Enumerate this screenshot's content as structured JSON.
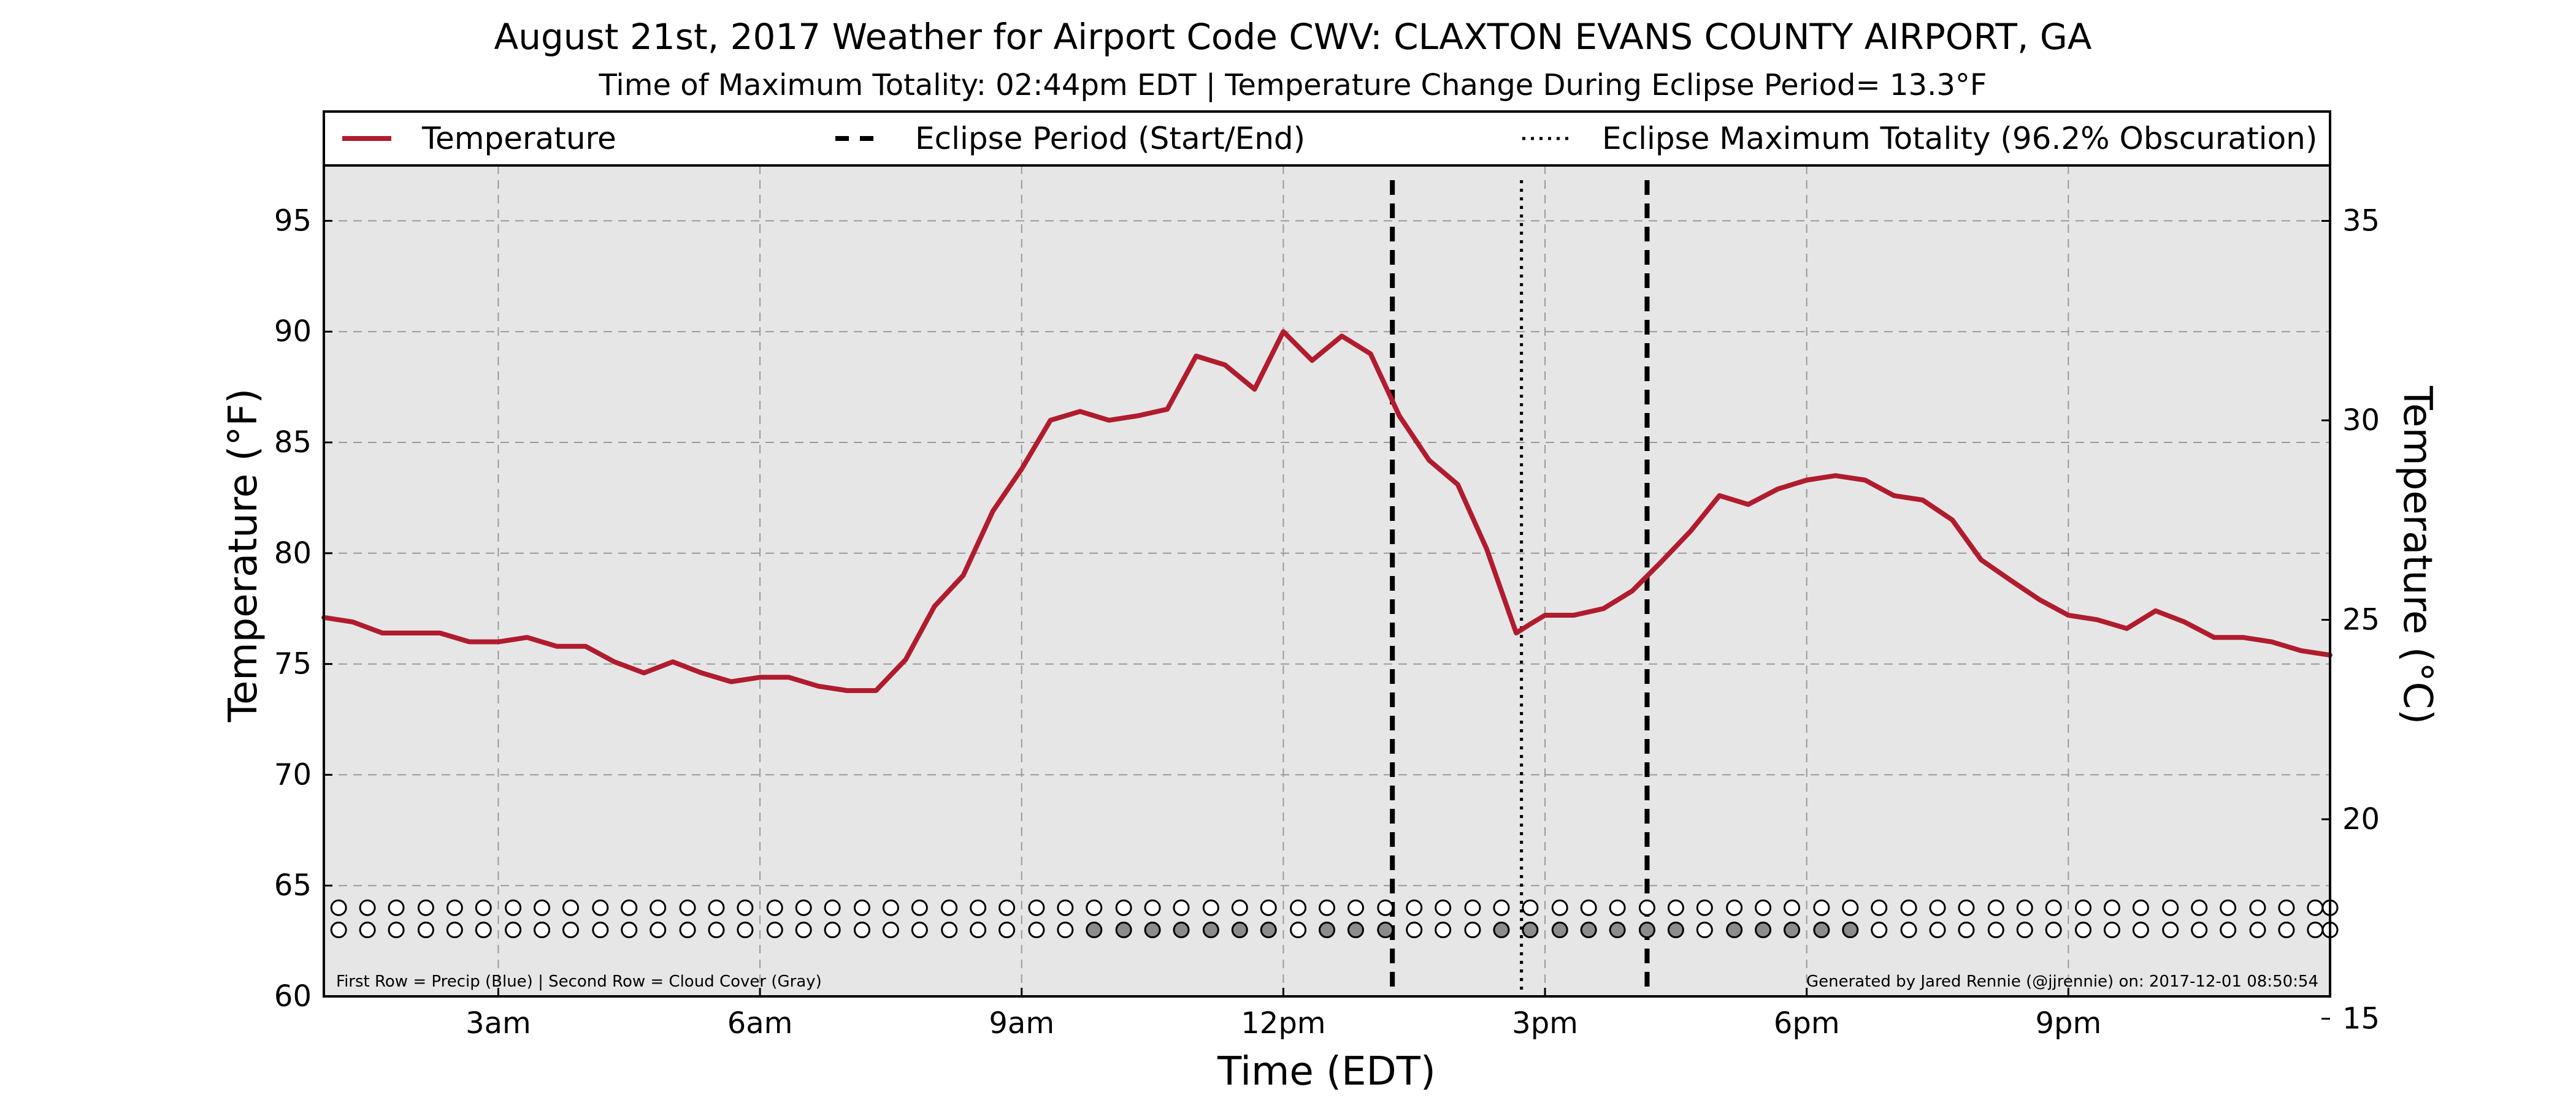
{
  "chart_data": {
    "type": "line",
    "title": "August 21st, 2017 Weather for Airport Code CWV: CLAXTON EVANS COUNTY AIRPORT, GA",
    "subtitle": "Time of Maximum Totality: 02:44pm EDT | Temperature Change During Eclipse Period= 13.3°F",
    "xlabel": "Time (EDT)",
    "ylabel": "Temperature (°F)",
    "ylabel_right": "Temperature (°C)",
    "ylim": [
      60,
      97.5
    ],
    "ylim_right": [
      15.56,
      36.39
    ],
    "y_ticks": [
      60,
      65,
      70,
      75,
      80,
      85,
      90,
      95
    ],
    "y_ticks_right": [
      15,
      20,
      25,
      30,
      35
    ],
    "xlim_hours": [
      1.0,
      24.0
    ],
    "x_ticks": [
      {
        "hour": 3,
        "label": "3am"
      },
      {
        "hour": 6,
        "label": "6am"
      },
      {
        "hour": 9,
        "label": "9am"
      },
      {
        "hour": 12,
        "label": "12pm"
      },
      {
        "hour": 15,
        "label": "3pm"
      },
      {
        "hour": 18,
        "label": "6pm"
      },
      {
        "hour": 21,
        "label": "9pm"
      }
    ],
    "grid": true,
    "legend_position": "top",
    "legend": [
      {
        "label": "Temperature",
        "style": "solid",
        "color": "#b01c2e"
      },
      {
        "label": "Eclipse Period (Start/End)",
        "style": "dashed",
        "color": "#000000"
      },
      {
        "label": "Eclipse Maximum Totality (96.2% Obscuration)",
        "style": "dotted",
        "color": "#000000"
      }
    ],
    "series": [
      {
        "name": "Temperature",
        "color": "#b01c2e",
        "x_hours": [
          1.0,
          1.33,
          1.67,
          2.0,
          2.33,
          2.67,
          3.0,
          3.33,
          3.67,
          4.0,
          4.33,
          4.67,
          5.0,
          5.33,
          5.67,
          6.0,
          6.33,
          6.67,
          7.0,
          7.33,
          7.67,
          8.0,
          8.33,
          8.67,
          9.0,
          9.33,
          9.67,
          10.0,
          10.33,
          10.67,
          11.0,
          11.33,
          11.67,
          12.0,
          12.33,
          12.67,
          13.0,
          13.33,
          13.67,
          14.0,
          14.33,
          14.67,
          14.83,
          15.0,
          15.33,
          15.67,
          16.0,
          16.33,
          16.67,
          17.0,
          17.33,
          17.67,
          18.0,
          18.33,
          18.67,
          19.0,
          19.33,
          19.67,
          20.0,
          20.33,
          20.67,
          21.0,
          21.33,
          21.67,
          22.0,
          22.33,
          22.67,
          23.0,
          23.33,
          23.67,
          24.0
        ],
        "values": [
          77.1,
          76.9,
          76.4,
          76.4,
          76.4,
          76.0,
          76.0,
          76.2,
          75.8,
          75.8,
          75.1,
          74.6,
          75.1,
          74.6,
          74.2,
          74.4,
          74.4,
          74.0,
          73.8,
          73.8,
          75.2,
          77.6,
          79.0,
          81.9,
          83.8,
          86.0,
          86.4,
          86.0,
          86.2,
          86.5,
          88.9,
          88.5,
          87.4,
          90.0,
          88.7,
          89.8,
          89.0,
          86.2,
          84.2,
          83.1,
          80.2,
          76.4,
          76.8,
          77.2,
          77.2,
          77.5,
          78.3,
          79.6,
          81.0,
          82.6,
          82.2,
          82.9,
          83.3,
          83.5,
          83.3,
          82.6,
          82.4,
          81.5,
          79.7,
          78.8,
          77.9,
          77.2,
          77.0,
          76.6,
          77.4,
          76.9,
          76.2,
          76.2,
          76.0,
          75.6,
          75.4
        ]
      }
    ],
    "eclipse_start_hour": 13.25,
    "eclipse_end_hour": 16.17,
    "eclipse_max_hour": 14.73,
    "precip_row_y": 64.0,
    "cloud_row_y": 63.0,
    "observation_hours": [
      1.17,
      1.5,
      1.83,
      2.17,
      2.5,
      2.83,
      3.17,
      3.5,
      3.83,
      4.17,
      4.5,
      4.83,
      5.17,
      5.5,
      5.83,
      6.17,
      6.5,
      6.83,
      7.17,
      7.5,
      7.83,
      8.17,
      8.5,
      8.83,
      9.17,
      9.5,
      9.83,
      10.17,
      10.5,
      10.83,
      11.17,
      11.5,
      11.83,
      12.17,
      12.5,
      12.83,
      13.17,
      13.5,
      13.83,
      14.17,
      14.5,
      14.83,
      15.17,
      15.5,
      15.83,
      16.17,
      16.5,
      16.83,
      17.17,
      17.5,
      17.83,
      18.17,
      18.5,
      18.83,
      19.17,
      19.5,
      19.83,
      20.17,
      20.5,
      20.83,
      21.17,
      21.5,
      21.83,
      22.17,
      22.5,
      22.83,
      23.17,
      23.5,
      23.83,
      24.0
    ],
    "cloud_cover_gray_hours": [
      9.83,
      10.17,
      10.5,
      10.83,
      11.17,
      11.5,
      11.83,
      12.5,
      12.83,
      13.17,
      14.5,
      14.83,
      15.17,
      15.5,
      15.83,
      16.17,
      16.5,
      17.17,
      17.5,
      17.83,
      18.17,
      18.5
    ],
    "footnote_left": "First Row = Precip (Blue) | Second Row = Cloud Cover (Gray)",
    "footnote_right": "Generated by Jared Rennie (@jjrennie) on: 2017-12-01 08:50:54"
  },
  "colors": {
    "plot_background": "#e6e6e6",
    "temperature_line": "#b01c2e",
    "cloud_gray": "#8c8c8c",
    "marker_empty": "#ffffff"
  }
}
